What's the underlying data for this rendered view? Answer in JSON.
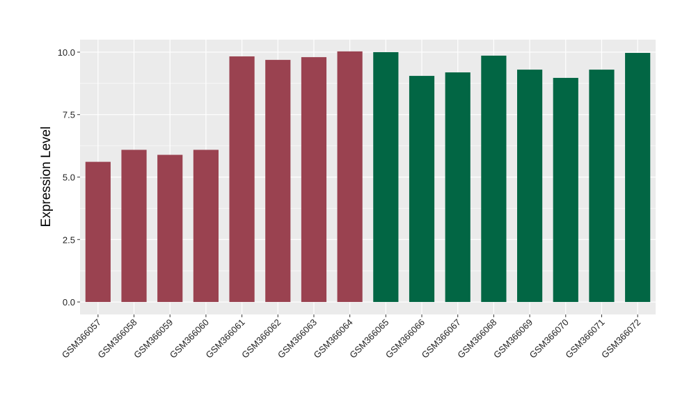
{
  "chart_data": {
    "type": "bar",
    "title": "",
    "xlabel": "",
    "ylabel": "Expression Level",
    "ylim": [
      -0.5,
      10.5
    ],
    "yticks": [
      0.0,
      2.5,
      5.0,
      7.5,
      10.0
    ],
    "ytick_labels": [
      "0.0",
      "2.5",
      "5.0",
      "7.5",
      "10.0"
    ],
    "grid": true,
    "legend": "none",
    "categories": [
      "GSM366057",
      "GSM366058",
      "GSM366059",
      "GSM366060",
      "GSM366061",
      "GSM366062",
      "GSM366063",
      "GSM366064",
      "GSM366065",
      "GSM366066",
      "GSM366067",
      "GSM366068",
      "GSM366069",
      "GSM366070",
      "GSM366071",
      "GSM366072"
    ],
    "values": [
      5.61,
      6.09,
      5.89,
      6.09,
      9.83,
      9.69,
      9.8,
      10.03,
      10.0,
      9.05,
      9.19,
      9.86,
      9.3,
      8.97,
      9.3,
      9.97
    ],
    "groups": [
      0,
      0,
      0,
      0,
      0,
      0,
      0,
      0,
      1,
      1,
      1,
      1,
      1,
      1,
      1,
      1
    ],
    "group_colors": [
      "#9A4250",
      "#026644"
    ],
    "panel_color": "#EBEBEB"
  }
}
